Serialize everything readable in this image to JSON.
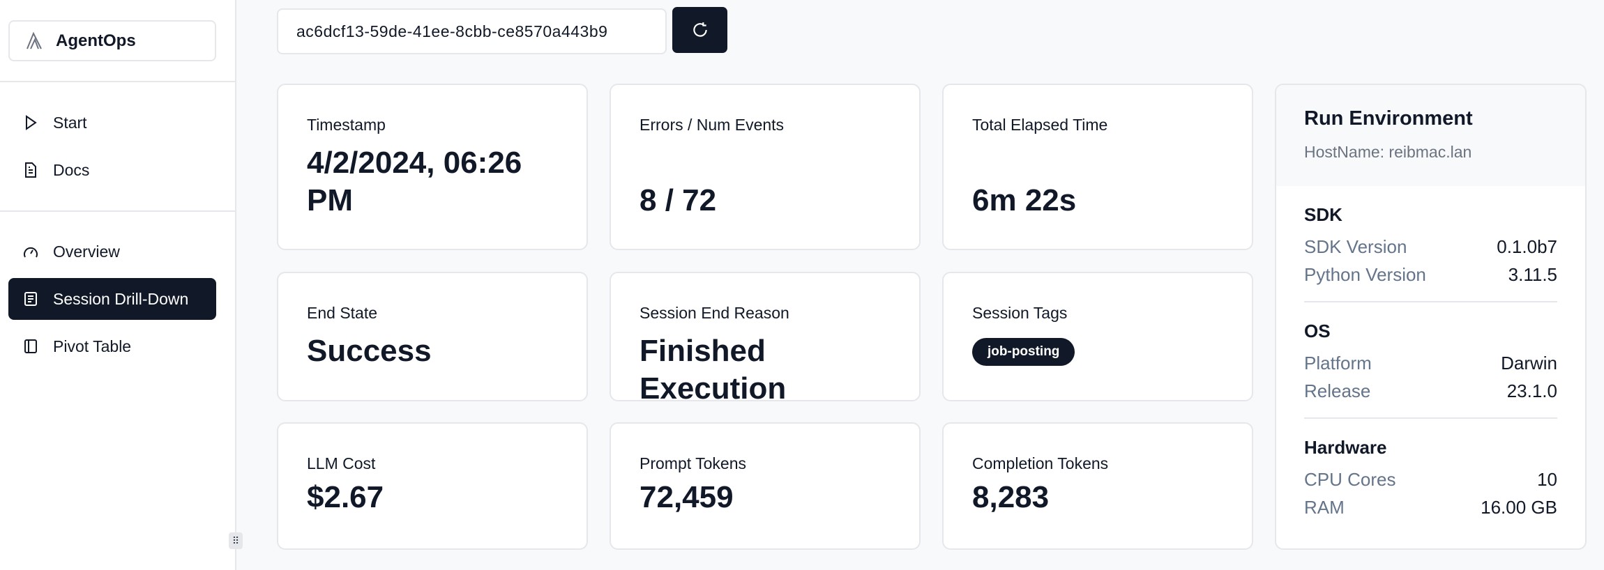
{
  "sidebar": {
    "brand": "AgentOps",
    "items": [
      {
        "label": "Start",
        "icon": "play-icon"
      },
      {
        "label": "Docs",
        "icon": "document-icon"
      },
      {
        "label": "Overview",
        "icon": "gauge-icon"
      },
      {
        "label": "Session Drill-Down",
        "icon": "list-icon",
        "active": true
      },
      {
        "label": "Pivot Table",
        "icon": "panel-icon"
      }
    ]
  },
  "session": {
    "id": "ac6dcf13-59de-41ee-8cbb-ce8570a443b9",
    "refresh_icon": "refresh-icon"
  },
  "cards": {
    "timestamp": {
      "label": "Timestamp",
      "value": "4/2/2024, 06:26 PM"
    },
    "errors": {
      "label": "Errors / Num Events",
      "value": "8 / 72"
    },
    "elapsed": {
      "label": "Total Elapsed Time",
      "value": "6m 22s"
    },
    "end_state": {
      "label": "End State",
      "value": "Success"
    },
    "end_reason": {
      "label": "Session End Reason",
      "value": "Finished Execution"
    },
    "tags": {
      "label": "Session Tags",
      "values": [
        "job-posting"
      ]
    },
    "cost": {
      "label": "LLM Cost",
      "value": "$2.67"
    },
    "prompt": {
      "label": "Prompt Tokens",
      "value": "72,459"
    },
    "completion": {
      "label": "Completion Tokens",
      "value": "8,283"
    }
  },
  "env": {
    "title": "Run Environment",
    "host": "HostName: reibmac.lan",
    "sdk": {
      "title": "SDK",
      "rows": [
        {
          "k": "SDK Version",
          "v": "0.1.0b7"
        },
        {
          "k": "Python Version",
          "v": "3.11.5"
        }
      ]
    },
    "os": {
      "title": "OS",
      "rows": [
        {
          "k": "Platform",
          "v": "Darwin"
        },
        {
          "k": "Release",
          "v": "23.1.0"
        }
      ]
    },
    "hardware": {
      "title": "Hardware",
      "rows": [
        {
          "k": "CPU Cores",
          "v": "10"
        },
        {
          "k": "RAM",
          "v": "16.00 GB"
        }
      ]
    }
  },
  "colors": {
    "primary": "#111827",
    "border": "#e5e7eb",
    "muted": "#64748b"
  }
}
